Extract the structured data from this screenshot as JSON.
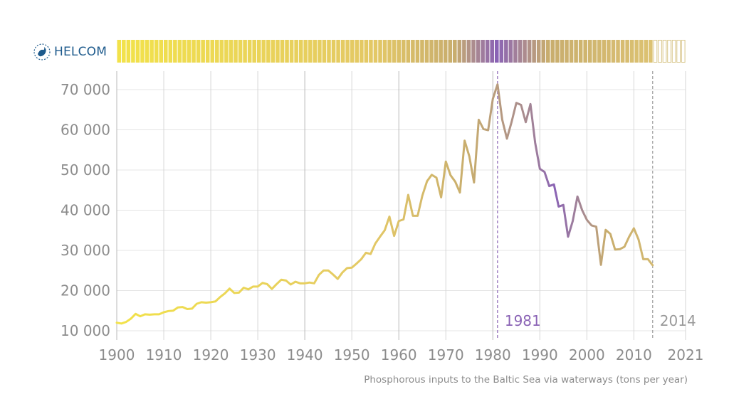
{
  "brand": {
    "name": "HELCOM",
    "color": "#1d5a8c"
  },
  "chart_data": {
    "type": "line",
    "caption": "Phosphorous inputs to the Baltic Sea via waterways (tons per year)",
    "xlim": [
      1900,
      2021
    ],
    "ylim": [
      10000,
      72000
    ],
    "x_ticks": [
      1900,
      1910,
      1920,
      1930,
      1940,
      1950,
      1960,
      1970,
      1980,
      1990,
      2000,
      2010,
      2021
    ],
    "y_ticks": [
      10000,
      20000,
      30000,
      40000,
      50000,
      60000,
      70000
    ],
    "y_tick_labels": [
      "10 000",
      "20 000",
      "30 000",
      "40 000",
      "50 000",
      "60 000",
      "70 000"
    ],
    "annotations": [
      {
        "x": 1981,
        "label": "1981",
        "color": "#8a63b5"
      },
      {
        "x": 2014,
        "label": "2014",
        "color": "#9a9a9a"
      }
    ],
    "colors": {
      "low": "#f2e24a",
      "mid": "#c8ad6e",
      "peak": "#8a63b5"
    },
    "series": [
      {
        "x": [
          1900,
          1901,
          1902,
          1903,
          1904,
          1905,
          1906,
          1907,
          1908,
          1909,
          1910,
          1911,
          1912,
          1913,
          1914,
          1915,
          1916,
          1917,
          1918,
          1919,
          1920,
          1921,
          1922,
          1923,
          1924,
          1925,
          1926,
          1927,
          1928,
          1929,
          1930,
          1931,
          1932,
          1933,
          1934,
          1935,
          1936,
          1937,
          1938,
          1939,
          1940,
          1941,
          1942,
          1943,
          1944,
          1945,
          1946,
          1947,
          1948,
          1949,
          1950,
          1951,
          1952,
          1953,
          1954,
          1955,
          1956,
          1957,
          1958,
          1959,
          1960,
          1961,
          1962,
          1963,
          1964,
          1965,
          1966,
          1967,
          1968,
          1969,
          1970,
          1971,
          1972,
          1973,
          1974,
          1975,
          1976,
          1977,
          1978,
          1979,
          1980,
          1981,
          1982,
          1983,
          1984,
          1985,
          1986,
          1987,
          1988,
          1989,
          1990,
          1991,
          1992,
          1993,
          1994,
          1995,
          1996,
          1997,
          1998,
          1999,
          2000,
          2001,
          2002,
          2003,
          2004,
          2005,
          2006,
          2007,
          2008,
          2009,
          2010,
          2011,
          2012,
          2013,
          2014
        ],
        "y": [
          12000,
          11800,
          12200,
          13000,
          14200,
          13600,
          14100,
          14000,
          14100,
          14100,
          14600,
          14900,
          15000,
          15800,
          15900,
          15400,
          15500,
          16700,
          17100,
          17000,
          17100,
          17300,
          18400,
          19300,
          20500,
          19400,
          19500,
          20700,
          20300,
          21000,
          21000,
          21900,
          21600,
          20400,
          21600,
          22700,
          22500,
          21500,
          22200,
          21800,
          21800,
          22000,
          21800,
          23900,
          25000,
          25000,
          24000,
          22900,
          24500,
          25600,
          25700,
          26700,
          27800,
          29400,
          29100,
          31700,
          33400,
          35000,
          38400,
          33600,
          37300,
          37700,
          43800,
          38600,
          38600,
          43600,
          47200,
          48800,
          48100,
          43200,
          52100,
          48700,
          47100,
          44400,
          57300,
          53400,
          46900,
          62500,
          60200,
          59900,
          67700,
          71300,
          62500,
          57800,
          62000,
          66700,
          66200,
          61900,
          66400,
          56800,
          50300,
          49500,
          46000,
          46400,
          40900,
          41300,
          33400,
          37300,
          43400,
          40000,
          37600,
          36200,
          35900,
          26400,
          35100,
          34100,
          30200,
          30300,
          30900,
          33400,
          35500,
          32700,
          27800,
          27800,
          26300
        ]
      }
    ]
  }
}
